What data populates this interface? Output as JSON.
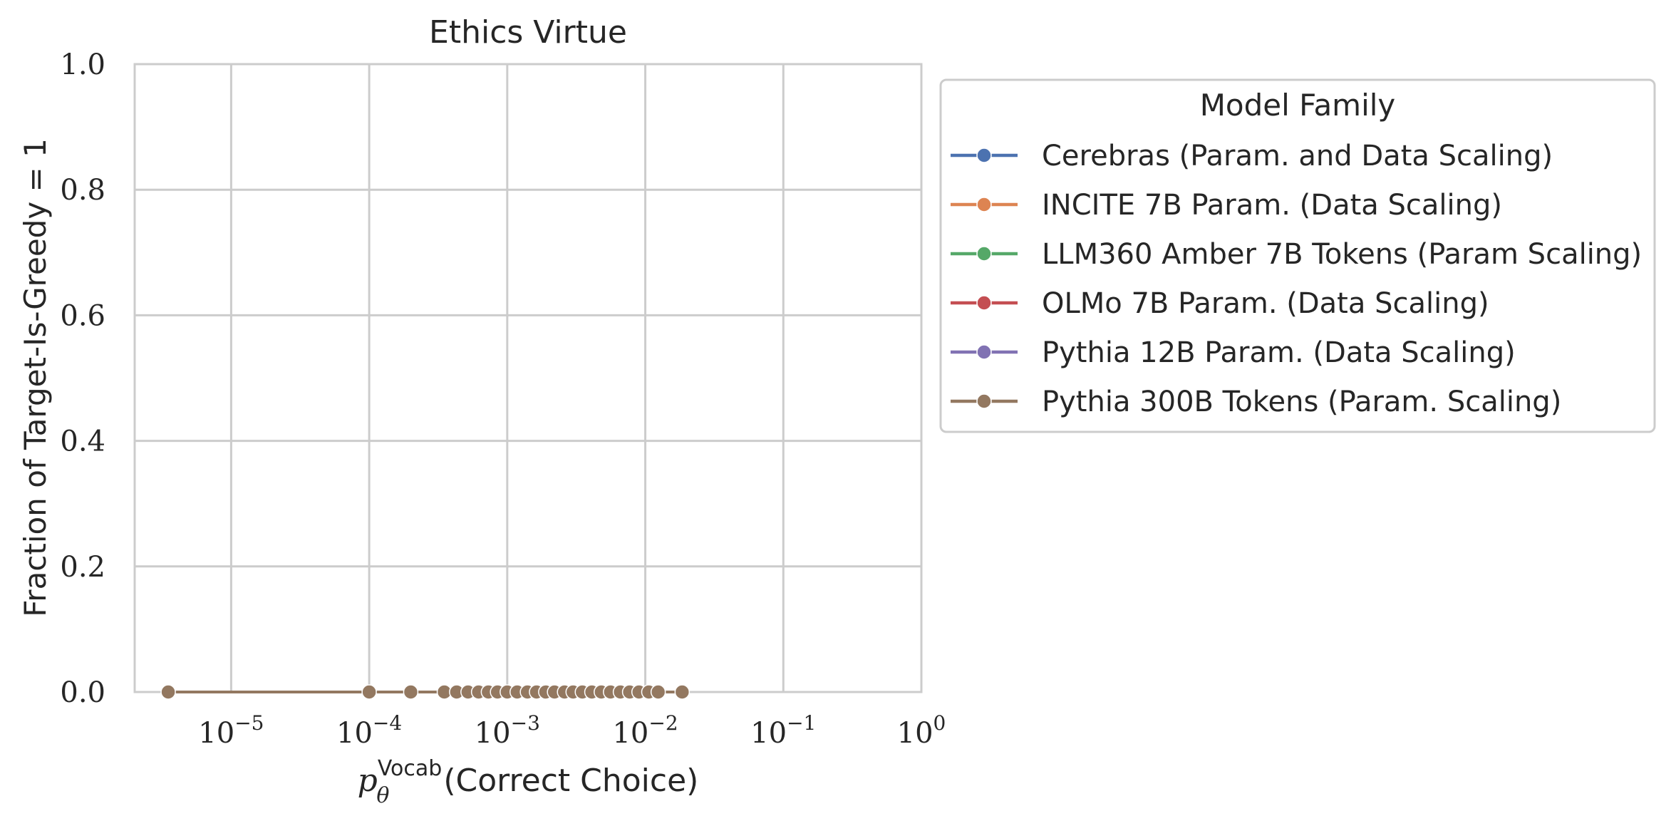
{
  "chart_data": {
    "type": "line",
    "title": "Ethics Virtue",
    "xlabel": {
      "prefix": "p",
      "subscript": "θ",
      "superscript": "Vocab",
      "suffix": "(Correct Choice)"
    },
    "ylabel": "Fraction of Target-Is-Greedy = 1",
    "xscale": "log",
    "xlim": [
      2e-06,
      1
    ],
    "ylim": [
      0,
      1
    ],
    "grid": true,
    "x_ticks": [
      {
        "base": "10",
        "exp": "−5",
        "value": 1e-05
      },
      {
        "base": "10",
        "exp": "−4",
        "value": 0.0001
      },
      {
        "base": "10",
        "exp": "−3",
        "value": 0.001
      },
      {
        "base": "10",
        "exp": "−2",
        "value": 0.01
      },
      {
        "base": "10",
        "exp": "−1",
        "value": 0.1
      },
      {
        "base": "10",
        "exp": "0",
        "value": 1
      }
    ],
    "y_ticks": [
      {
        "label": "0.0",
        "value": 0.0
      },
      {
        "label": "0.2",
        "value": 0.2
      },
      {
        "label": "0.4",
        "value": 0.4
      },
      {
        "label": "0.6",
        "value": 0.6
      },
      {
        "label": "0.8",
        "value": 0.8
      },
      {
        "label": "1.0",
        "value": 1.0
      }
    ],
    "legend": {
      "title": "Model Family",
      "placement": "outside-right"
    },
    "series": [
      {
        "name": "Cerebras (Param. and Data Scaling)",
        "color": "#4c72b0",
        "x": [],
        "y": []
      },
      {
        "name": "INCITE 7B Param. (Data Scaling)",
        "color": "#dd8452",
        "x": [],
        "y": []
      },
      {
        "name": "LLM360 Amber 7B Tokens (Param Scaling)",
        "color": "#55a868",
        "x": [],
        "y": []
      },
      {
        "name": "OLMo 7B Param. (Data Scaling)",
        "color": "#c44e52",
        "x": [],
        "y": []
      },
      {
        "name": "Pythia 12B Param. (Data Scaling)",
        "color": "#8172b3",
        "x": [],
        "y": []
      },
      {
        "name": "Pythia 300B Tokens (Param. Scaling)",
        "color": "#937860",
        "x": [
          3.5e-06,
          0.0001,
          0.0002,
          0.00035,
          0.00043,
          0.00052,
          0.00062,
          0.00073,
          0.00085,
          0.001,
          0.00118,
          0.0014,
          0.00163,
          0.0019,
          0.0022,
          0.0026,
          0.003,
          0.0035,
          0.0041,
          0.0048,
          0.0056,
          0.0066,
          0.0077,
          0.009,
          0.0106,
          0.0124,
          0.0185
        ],
        "y": [
          0,
          0,
          0,
          0,
          0,
          0,
          0,
          0,
          0,
          0,
          0,
          0,
          0,
          0,
          0,
          0,
          0,
          0,
          0,
          0,
          0,
          0,
          0,
          0,
          0,
          0,
          0
        ]
      }
    ]
  }
}
